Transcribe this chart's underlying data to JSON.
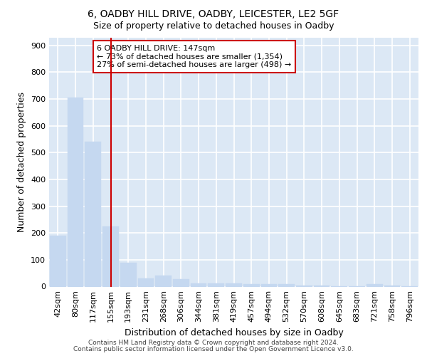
{
  "title1": "6, OADBY HILL DRIVE, OADBY, LEICESTER, LE2 5GF",
  "title2": "Size of property relative to detached houses in Oadby",
  "xlabel": "Distribution of detached houses by size in Oadby",
  "ylabel": "Number of detached properties",
  "bar_labels": [
    "42sqm",
    "80sqm",
    "117sqm",
    "155sqm",
    "193sqm",
    "231sqm",
    "268sqm",
    "306sqm",
    "344sqm",
    "381sqm",
    "419sqm",
    "457sqm",
    "494sqm",
    "532sqm",
    "570sqm",
    "608sqm",
    "645sqm",
    "683sqm",
    "721sqm",
    "758sqm",
    "796sqm"
  ],
  "bar_values": [
    190,
    705,
    540,
    225,
    90,
    30,
    40,
    27,
    13,
    11,
    12,
    10,
    9,
    8,
    5,
    3,
    2,
    1,
    8,
    5,
    1
  ],
  "bar_color": "#c5d8f0",
  "bar_edgecolor": "#c5d8f0",
  "vline_x": 3.0,
  "vline_color": "#cc0000",
  "annotation_text": "6 OADBY HILL DRIVE: 147sqm\n← 73% of detached houses are smaller (1,354)\n27% of semi-detached houses are larger (498) →",
  "annotation_box_edgecolor": "#cc0000",
  "annotation_box_facecolor": "#ffffff",
  "footnote1": "Contains HM Land Registry data © Crown copyright and database right 2024.",
  "footnote2": "Contains public sector information licensed under the Open Government Licence v3.0.",
  "ylim": [
    0,
    930
  ],
  "yticks": [
    0,
    100,
    200,
    300,
    400,
    500,
    600,
    700,
    800,
    900
  ],
  "bg_color": "#dce8f5",
  "title1_fontsize": 10,
  "title2_fontsize": 9,
  "axis_label_fontsize": 9,
  "tick_fontsize": 8,
  "footnote_fontsize": 6.5
}
